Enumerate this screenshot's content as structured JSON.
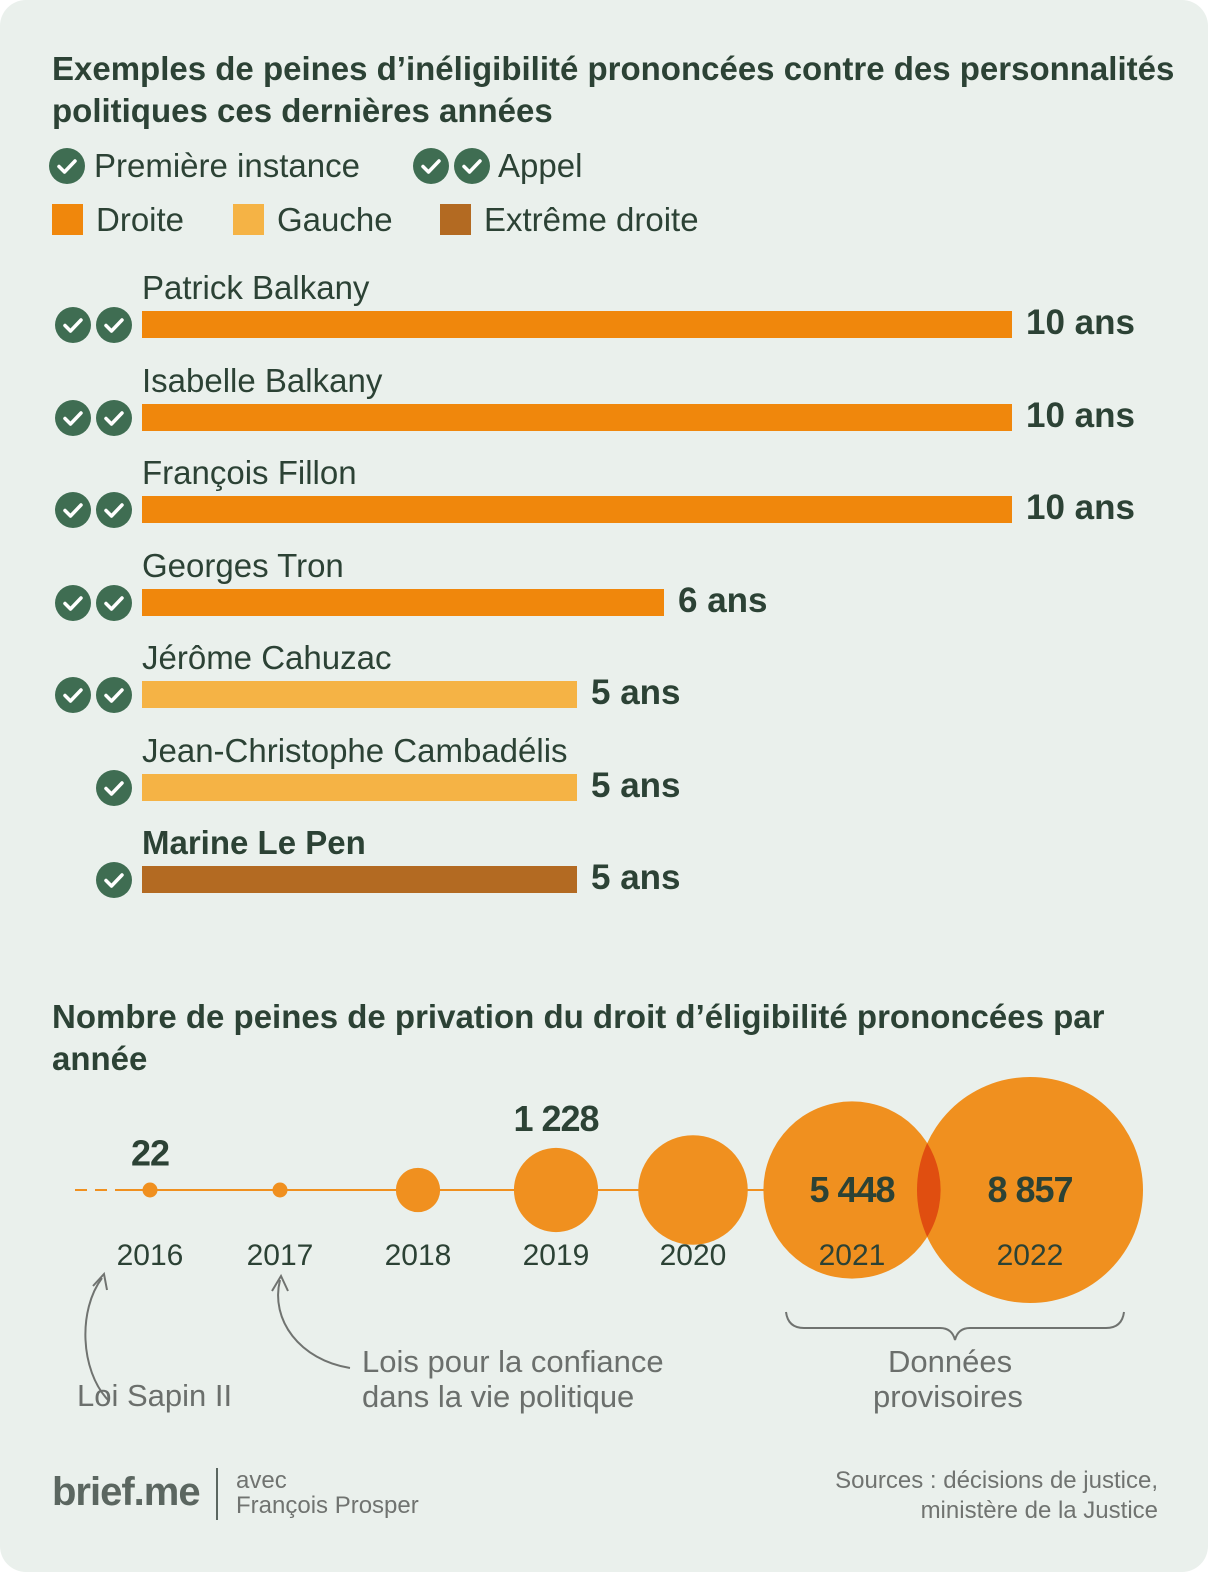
{
  "title1": "Exemples de peines d’inéligibilité prononcées contre des personnalités politiques ces dernières années",
  "legend": {
    "first_instance": "Première instance",
    "appeal": "Appel",
    "right": "Droite",
    "left": "Gauche",
    "far_right": "Extrême droite"
  },
  "colors": {
    "droite": "#f0870c",
    "gauche": "#f5b345",
    "extreme_droite": "#b36a22",
    "check": "#3f6d52",
    "bubble": "#f0901f",
    "overlap": "#e04e10",
    "text": "#2c4235"
  },
  "chart_data": [
    {
      "type": "bar",
      "title": "Exemples de peines d’inéligibilité prononcées contre des personnalités politiques ces dernières années",
      "unit": "ans",
      "xlim": [
        0,
        10
      ],
      "rows": [
        {
          "name": "Patrick Balkany",
          "value": 10,
          "label": "10 ans",
          "party": "droite",
          "checks": 2,
          "bold": false
        },
        {
          "name": "Isabelle Balkany",
          "value": 10,
          "label": "10 ans",
          "party": "droite",
          "checks": 2,
          "bold": false
        },
        {
          "name": "François Fillon",
          "value": 10,
          "label": "10 ans",
          "party": "droite",
          "checks": 2,
          "bold": false
        },
        {
          "name": "Georges Tron",
          "value": 6,
          "label": "6 ans",
          "party": "droite",
          "checks": 2,
          "bold": false
        },
        {
          "name": "Jérôme Cahuzac",
          "value": 5,
          "label": "5 ans",
          "party": "gauche",
          "checks": 2,
          "bold": false
        },
        {
          "name": "Jean-Christophe Cambadélis",
          "value": 5,
          "label": "5 ans",
          "party": "gauche",
          "checks": 1,
          "bold": false
        },
        {
          "name": "Marine Le Pen",
          "value": 5,
          "label": "5 ans",
          "party": "extreme_droite",
          "checks": 1,
          "bold": true
        }
      ]
    },
    {
      "type": "scatter",
      "title": "Nombre de peines de privation du droit d’éligibilité prononcées par année",
      "encoding": "bubble area proportional to value",
      "points": [
        {
          "year": "2016",
          "value": 22,
          "label": "22"
        },
        {
          "year": "2017",
          "value": 22,
          "label": ""
        },
        {
          "year": "2018",
          "value": 340,
          "label": ""
        },
        {
          "year": "2019",
          "value": 1228,
          "label": "1 228"
        },
        {
          "year": "2020",
          "value": 2080,
          "label": ""
        },
        {
          "year": "2021",
          "value": 5448,
          "label": "5 448"
        },
        {
          "year": "2022",
          "value": 8857,
          "label": "8 857"
        }
      ]
    }
  ],
  "annotations": {
    "sapin_line1": "Loi Sapin II",
    "confiance_line1": "Lois pour la confiance",
    "confiance_line2": "dans la vie politique",
    "provisional_line1": "Données",
    "provisional_line2": "provisoires"
  },
  "footer": {
    "logo": "brief.me",
    "with_line1": "avec",
    "with_line2": "François Prosper",
    "sources_line1": "Sources : décisions de justice,",
    "sources_line2": "ministère de la Justice"
  }
}
